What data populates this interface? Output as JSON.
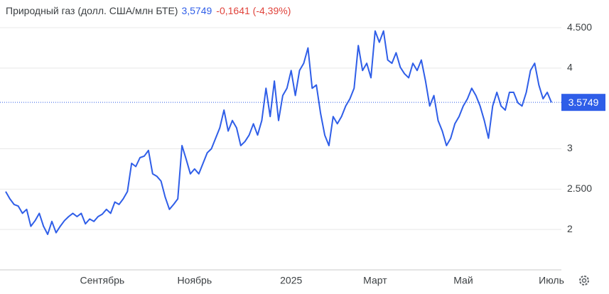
{
  "chart_data": {
    "type": "line",
    "title": "Природный газ (долл. США/млн БТЕ)",
    "price": "3,5749",
    "change": "-0,1641 (-4,39%)",
    "current_price": 3.5749,
    "color": "#2f5ee8",
    "categories": [
      null,
      null,
      null,
      null,
      null,
      null,
      null,
      null,
      null,
      null,
      null,
      null,
      null,
      null,
      null,
      null,
      null,
      null,
      null,
      null,
      null,
      null,
      null,
      "Сентябрь",
      null,
      null,
      null,
      null,
      null,
      null,
      null,
      null,
      null,
      null,
      null,
      null,
      null,
      null,
      null,
      null,
      null,
      null,
      null,
      null,
      null,
      "Ноябрь",
      null,
      null,
      null,
      null,
      null,
      null,
      null,
      null,
      null,
      null,
      null,
      null,
      null,
      null,
      null,
      null,
      null,
      null,
      null,
      null,
      null,
      null,
      "2025",
      null,
      null,
      null,
      null,
      null,
      null,
      null,
      null,
      null,
      null,
      null,
      null,
      null,
      null,
      null,
      null,
      null,
      null,
      null,
      "Март",
      null,
      null,
      null,
      null,
      null,
      null,
      null,
      null,
      null,
      null,
      null,
      null,
      null,
      null,
      null,
      null,
      null,
      null,
      null,
      null,
      "Май",
      null,
      null,
      null,
      null,
      null,
      null,
      null,
      null,
      null,
      null,
      null,
      null,
      null,
      null,
      null,
      null,
      null,
      null,
      null,
      null,
      "Июль"
    ],
    "values": [
      2.47,
      2.38,
      2.31,
      2.29,
      2.2,
      2.25,
      2.04,
      2.11,
      2.2,
      2.04,
      1.94,
      2.1,
      1.96,
      2.04,
      2.11,
      2.16,
      2.2,
      2.16,
      2.2,
      2.07,
      2.13,
      2.1,
      2.16,
      2.19,
      2.25,
      2.2,
      2.34,
      2.31,
      2.38,
      2.47,
      2.82,
      2.78,
      2.89,
      2.91,
      2.98,
      2.69,
      2.66,
      2.6,
      2.4,
      2.25,
      2.31,
      2.38,
      3.04,
      2.87,
      2.69,
      2.75,
      2.69,
      2.82,
      2.95,
      3.0,
      3.13,
      3.26,
      3.48,
      3.22,
      3.35,
      3.26,
      3.04,
      3.09,
      3.17,
      3.31,
      3.17,
      3.35,
      3.75,
      3.4,
      3.84,
      3.35,
      3.66,
      3.75,
      3.97,
      3.66,
      3.97,
      4.06,
      4.25,
      3.75,
      3.79,
      3.44,
      3.17,
      3.04,
      3.4,
      3.31,
      3.4,
      3.53,
      3.62,
      3.75,
      4.28,
      3.97,
      4.06,
      3.88,
      4.46,
      4.32,
      4.46,
      4.1,
      4.06,
      4.19,
      4.01,
      3.93,
      3.88,
      4.06,
      3.97,
      4.1,
      3.84,
      3.53,
      3.66,
      3.35,
      3.22,
      3.04,
      3.13,
      3.31,
      3.4,
      3.53,
      3.62,
      3.75,
      3.66,
      3.53,
      3.35,
      3.13,
      3.53,
      3.7,
      3.53,
      3.48,
      3.7,
      3.7,
      3.57,
      3.53,
      3.7,
      3.97,
      4.06,
      3.79,
      3.62,
      3.7,
      3.5749
    ],
    "ylim": [
      1.5,
      4.65
    ],
    "yticks": [
      2,
      {
        "value": 2.5,
        "label": "2.500"
      },
      3,
      4,
      {
        "value": 4.5,
        "label": "4.500"
      }
    ],
    "grid": true
  }
}
